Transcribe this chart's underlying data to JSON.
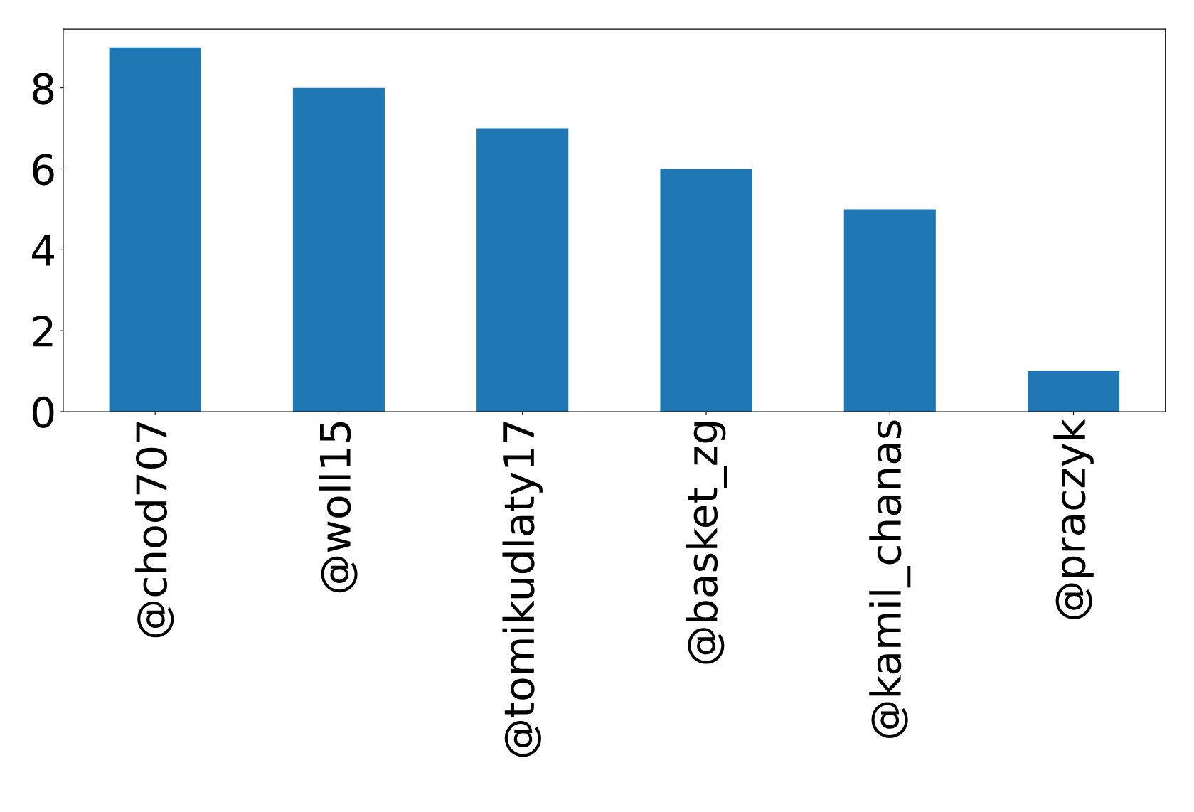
{
  "chart_data": {
    "type": "bar",
    "categories": [
      "@chod707",
      "@woll15",
      "@tomikudlaty17",
      "@basket_zg",
      "@kamil_chanas",
      "@praczyk"
    ],
    "values": [
      9,
      8,
      7,
      6,
      5,
      1
    ],
    "color": "#1f77b4",
    "ylim": [
      0,
      9.45
    ],
    "yticks": [
      0,
      2,
      4,
      6,
      8
    ],
    "grid": false,
    "legend": false
  }
}
